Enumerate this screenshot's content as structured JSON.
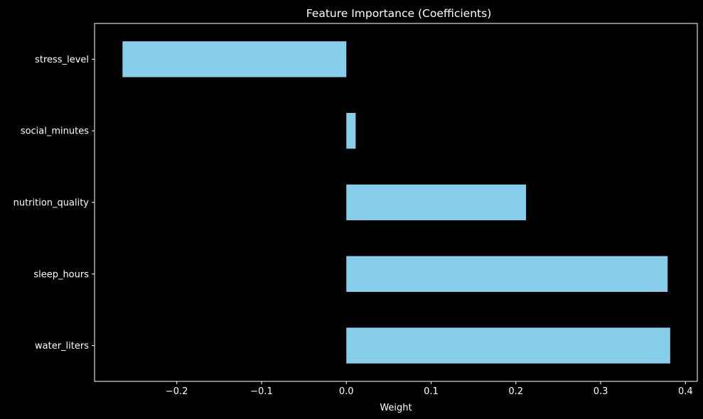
{
  "chart_data": {
    "type": "bar",
    "orientation": "horizontal",
    "title": "Feature Importance (Coefficients)",
    "xlabel": "Weight",
    "ylabel": "",
    "categories": [
      "stress_level",
      "social_minutes",
      "nutrition_quality",
      "sleep_hours",
      "water_liters"
    ],
    "values": [
      -0.264,
      0.011,
      0.212,
      0.379,
      0.382
    ],
    "xlim": [
      -0.297,
      0.414
    ],
    "xticks": [
      -0.2,
      -0.1,
      0.0,
      0.1,
      0.2,
      0.3,
      0.4
    ],
    "xtick_labels": [
      "−0.2",
      "−0.1",
      "0.0",
      "0.1",
      "0.2",
      "0.3",
      "0.4"
    ],
    "grid": false,
    "legend": "none",
    "colors": {
      "background": "#000000",
      "bar": "#87CEEB",
      "axis": "#ffffff",
      "text": "#ffffff"
    }
  }
}
